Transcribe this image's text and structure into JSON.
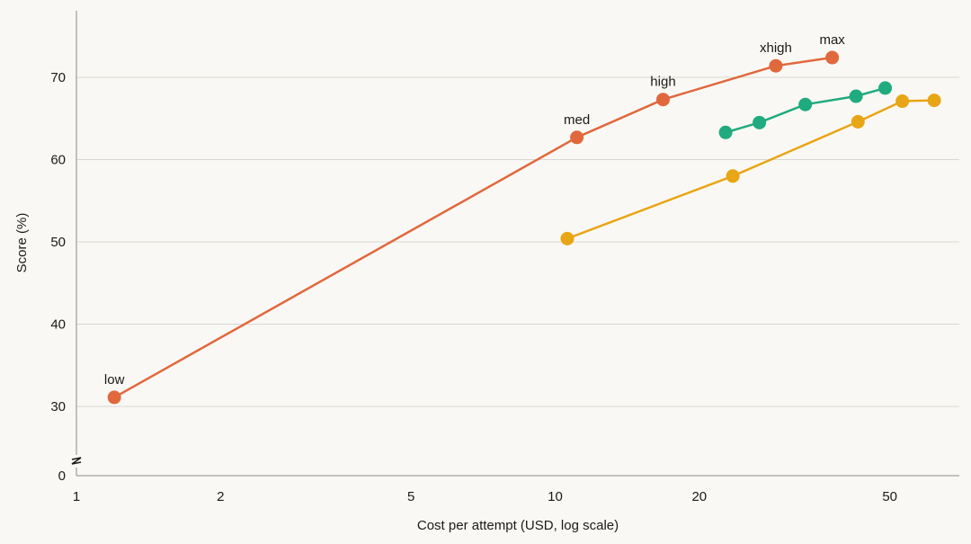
{
  "chart_data": {
    "type": "line",
    "title": "",
    "xlabel": "Cost per attempt (USD, log scale)",
    "ylabel": "Score (%)",
    "x_scale": "log",
    "xlim": [
      1,
      65
    ],
    "ylim": [
      0,
      76
    ],
    "y_axis_break": true,
    "x_ticks": [
      1,
      2,
      5,
      10,
      20,
      50
    ],
    "y_ticks": [
      0,
      30,
      40,
      50,
      60,
      70
    ],
    "grid": "horizontal",
    "legend": "none",
    "series": [
      {
        "color": "#e0683d",
        "points": [
          {
            "x": 1.2,
            "y": 31.1,
            "label": "low"
          },
          {
            "x": 11.1,
            "y": 62.7,
            "label": "med"
          },
          {
            "x": 16.8,
            "y": 67.3,
            "label": "high"
          },
          {
            "x": 28.9,
            "y": 71.4,
            "label": "xhigh"
          },
          {
            "x": 37.9,
            "y": 72.4,
            "label": "max"
          }
        ]
      },
      {
        "color": "#1fab7f",
        "points": [
          {
            "x": 22.7,
            "y": 63.3
          },
          {
            "x": 26.7,
            "y": 64.5
          },
          {
            "x": 33.3,
            "y": 66.7
          },
          {
            "x": 42.5,
            "y": 67.7
          },
          {
            "x": 48.9,
            "y": 68.7
          }
        ]
      },
      {
        "color": "#e8a515",
        "points": [
          {
            "x": 10.6,
            "y": 50.4
          },
          {
            "x": 23.5,
            "y": 58.0
          },
          {
            "x": 42.9,
            "y": 64.6
          },
          {
            "x": 53.1,
            "y": 67.1
          },
          {
            "x": 61.9,
            "y": 67.2
          }
        ]
      }
    ]
  }
}
